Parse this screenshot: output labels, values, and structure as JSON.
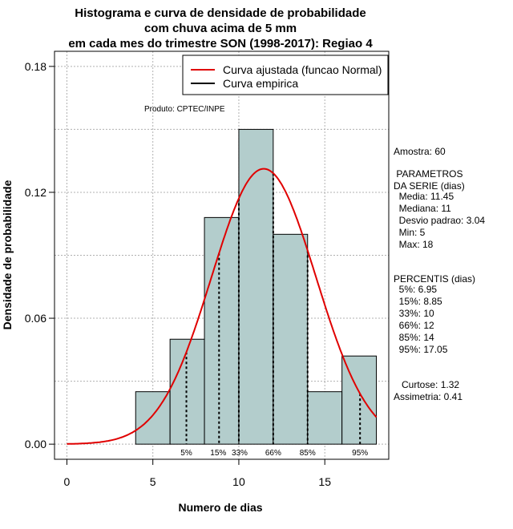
{
  "chart_data": {
    "type": "histogram",
    "title": [
      "Histograma e curva de densidade de probabilidade",
      "com chuva acima de 5 mm",
      "em cada mes do trimestre SON (1998-2017): Regiao 4"
    ],
    "xlabel": "Numero de dias",
    "ylabel": "Densidade de probabilidade",
    "xlim": [
      -0.72,
      18.72
    ],
    "ylim": [
      -0.0072,
      0.1872
    ],
    "xticks": [
      0,
      5,
      10,
      15
    ],
    "yticks": [
      0.0,
      0.06,
      0.12,
      0.18
    ],
    "ytick_labels": [
      "0.00",
      "0.06",
      "0.12",
      "0.18"
    ],
    "bins": [
      {
        "x0": 4,
        "x1": 6,
        "density": 0.025
      },
      {
        "x0": 6,
        "x1": 8,
        "density": 0.05
      },
      {
        "x0": 8,
        "x1": 10,
        "density": 0.108
      },
      {
        "x0": 10,
        "x1": 12,
        "density": 0.15
      },
      {
        "x0": 12,
        "x1": 14,
        "density": 0.1
      },
      {
        "x0": 14,
        "x1": 16,
        "density": 0.025
      },
      {
        "x0": 16,
        "x1": 18,
        "density": 0.042
      }
    ],
    "normal_curve": {
      "mean": 11.45,
      "sd": 3.04,
      "x_range": [
        0,
        18
      ]
    },
    "percentile_lines": [
      {
        "label": "5%",
        "value": 6.95
      },
      {
        "label": "15%",
        "value": 8.85
      },
      {
        "label": "33%",
        "value": 10
      },
      {
        "label": "66%",
        "value": 12
      },
      {
        "label": "85%",
        "value": 14
      },
      {
        "label": "95%",
        "value": 17.05
      }
    ],
    "legend": [
      {
        "label": "Curva ajustada (funcao Normal)",
        "color": "#e00000"
      },
      {
        "label": "Curva empirica",
        "color": "#000000"
      }
    ],
    "annotation": "Produto: CPTEC/INPE",
    "grid": true,
    "colors": {
      "bar_fill": "#b3cdcc",
      "curve": "#e00000",
      "grid": "#b0b0b0"
    }
  },
  "stats": {
    "amostra": "Amostra: 60",
    "params_title": " PARAMETROS\nDA SERIE (dias)",
    "params": "  Media: 11.45\n  Mediana: 11\n  Desvio padrao: 3.04\n  Min: 5\n  Max: 18",
    "percentis_title": "PERCENTIS (dias)",
    "percentis": "  5%: 6.95\n  15%: 8.85\n  33%: 10\n  66%: 12\n  85%: 14\n  95%: 17.05",
    "shape": "   Curtose: 1.32\nAssimetria: 0.41"
  }
}
